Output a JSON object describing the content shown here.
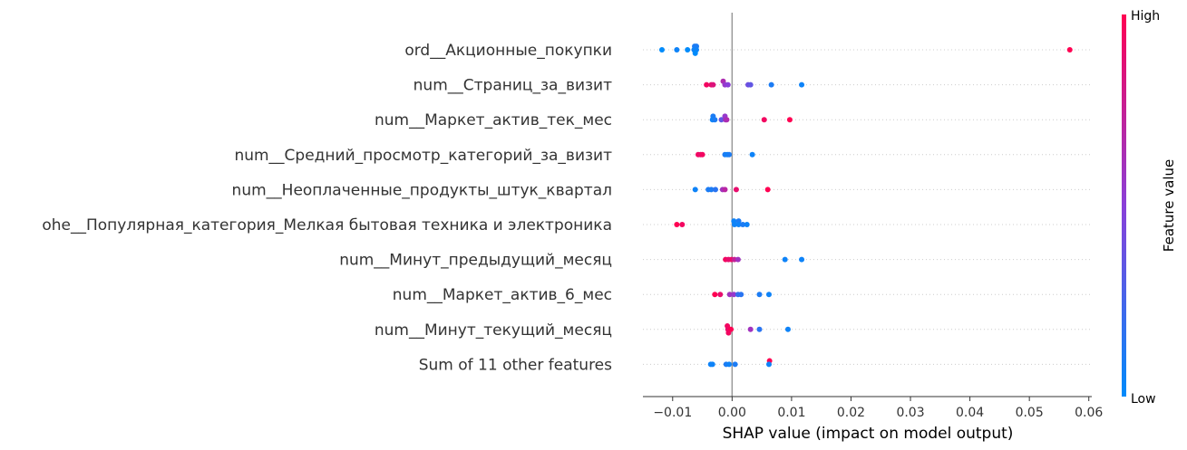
{
  "chart_data": {
    "type": "scatter",
    "subtype": "shap-beeswarm",
    "xlabel": "SHAP value (impact on model output)",
    "xlim": [
      -0.015,
      0.0605
    ],
    "xticks": [
      -0.01,
      0.0,
      0.01,
      0.02,
      0.03,
      0.04,
      0.05,
      0.06
    ],
    "xtick_labels": [
      "−0.01",
      "0.00",
      "0.01",
      "0.02",
      "0.03",
      "0.04",
      "0.05",
      "0.06"
    ],
    "zero_line": true,
    "row_gridlines": "dotted",
    "colorbar": {
      "title": "Feature value",
      "high_label": "High",
      "low_label": "Low",
      "low_color": "#008bfb",
      "high_color": "#ff0052",
      "placement": "right"
    },
    "features": [
      {
        "name": "ord__Акционные_покупки",
        "points": [
          {
            "x": -0.0118,
            "v": 0.0,
            "dy": 0.0
          },
          {
            "x": -0.0093,
            "v": 0.05,
            "dy": 0.0
          },
          {
            "x": -0.0075,
            "v": 0.0,
            "dy": 0.0
          },
          {
            "x": -0.0063,
            "v": 0.1,
            "dy": -0.32
          },
          {
            "x": -0.006,
            "v": 0.1,
            "dy": -0.32
          },
          {
            "x": -0.0064,
            "v": 0.05,
            "dy": 0.0
          },
          {
            "x": -0.006,
            "v": 0.05,
            "dy": 0.0
          },
          {
            "x": -0.0062,
            "v": 0.0,
            "dy": 0.32
          },
          {
            "x": 0.0568,
            "v": 1.0,
            "dy": 0.0
          }
        ]
      },
      {
        "name": "num__Страниц_за_визит",
        "points": [
          {
            "x": -0.0043,
            "v": 0.95,
            "dy": 0.0
          },
          {
            "x": -0.0035,
            "v": 0.9,
            "dy": 0.0
          },
          {
            "x": -0.0032,
            "v": 0.85,
            "dy": 0.0
          },
          {
            "x": -0.0015,
            "v": 0.65,
            "dy": -0.32
          },
          {
            "x": -0.0012,
            "v": 0.55,
            "dy": 0.0
          },
          {
            "x": -0.0007,
            "v": 0.5,
            "dy": 0.0
          },
          {
            "x": 0.0027,
            "v": 0.4,
            "dy": 0.0
          },
          {
            "x": 0.0031,
            "v": 0.35,
            "dy": 0.0
          },
          {
            "x": 0.0066,
            "v": 0.1,
            "dy": 0.0
          },
          {
            "x": 0.0117,
            "v": 0.05,
            "dy": 0.0
          }
        ]
      },
      {
        "name": "num__Маркет_актив_тек_мес",
        "points": [
          {
            "x": -0.0032,
            "v": 0.1,
            "dy": -0.32
          },
          {
            "x": -0.0033,
            "v": 0.05,
            "dy": 0.0
          },
          {
            "x": -0.0029,
            "v": 0.1,
            "dy": 0.0
          },
          {
            "x": -0.0018,
            "v": 0.35,
            "dy": 0.0
          },
          {
            "x": -0.0012,
            "v": 0.55,
            "dy": -0.32
          },
          {
            "x": -0.0011,
            "v": 0.6,
            "dy": 0.0
          },
          {
            "x": -0.0009,
            "v": 0.65,
            "dy": 0.0
          },
          {
            "x": 0.0054,
            "v": 0.95,
            "dy": 0.0
          },
          {
            "x": 0.0097,
            "v": 1.0,
            "dy": 0.0
          }
        ]
      },
      {
        "name": "num__Средний_просмотр_категорий_за_визит",
        "points": [
          {
            "x": -0.0057,
            "v": 0.95,
            "dy": 0.0
          },
          {
            "x": -0.0053,
            "v": 0.9,
            "dy": 0.0
          },
          {
            "x": -0.005,
            "v": 0.95,
            "dy": 0.0
          },
          {
            "x": -0.0012,
            "v": 0.1,
            "dy": 0.0
          },
          {
            "x": -0.0008,
            "v": 0.05,
            "dy": 0.0
          },
          {
            "x": -0.0005,
            "v": 0.1,
            "dy": 0.0
          },
          {
            "x": 0.0034,
            "v": 0.05,
            "dy": 0.0
          }
        ]
      },
      {
        "name": "num__Неоплаченные_продукты_штук_квартал",
        "points": [
          {
            "x": -0.0062,
            "v": 0.05,
            "dy": 0.0
          },
          {
            "x": -0.004,
            "v": 0.1,
            "dy": 0.0
          },
          {
            "x": -0.0035,
            "v": 0.1,
            "dy": 0.0
          },
          {
            "x": -0.0028,
            "v": 0.15,
            "dy": 0.0
          },
          {
            "x": -0.0016,
            "v": 0.6,
            "dy": 0.0
          },
          {
            "x": -0.0012,
            "v": 0.7,
            "dy": 0.0
          },
          {
            "x": 0.0007,
            "v": 0.9,
            "dy": 0.0
          },
          {
            "x": 0.006,
            "v": 1.0,
            "dy": 0.0
          }
        ]
      },
      {
        "name": "ohe__Популярная_категория_Мелкая бытовая техника и электроника",
        "points": [
          {
            "x": -0.0093,
            "v": 1.0,
            "dy": 0.0
          },
          {
            "x": -0.0084,
            "v": 0.95,
            "dy": 0.0
          },
          {
            "x": 0.0003,
            "v": 0.05,
            "dy": -0.32
          },
          {
            "x": 0.0011,
            "v": 0.1,
            "dy": -0.32
          },
          {
            "x": 0.0004,
            "v": 0.05,
            "dy": 0.0
          },
          {
            "x": 0.0011,
            "v": 0.05,
            "dy": 0.0
          },
          {
            "x": 0.0018,
            "v": 0.1,
            "dy": 0.0
          },
          {
            "x": 0.0025,
            "v": 0.05,
            "dy": 0.0
          }
        ]
      },
      {
        "name": "num__Минут_предыдущий_месяц",
        "points": [
          {
            "x": -0.0011,
            "v": 0.95,
            "dy": 0.0
          },
          {
            "x": -0.0006,
            "v": 0.9,
            "dy": 0.0
          },
          {
            "x": -0.0001,
            "v": 0.9,
            "dy": 0.0
          },
          {
            "x": 0.0004,
            "v": 0.75,
            "dy": 0.0
          },
          {
            "x": 0.001,
            "v": 0.6,
            "dy": 0.0
          },
          {
            "x": 0.0089,
            "v": 0.05,
            "dy": 0.0
          },
          {
            "x": 0.0117,
            "v": 0.05,
            "dy": 0.0
          }
        ]
      },
      {
        "name": "num__Маркет_актив_6_мес",
        "points": [
          {
            "x": -0.0029,
            "v": 1.0,
            "dy": 0.0
          },
          {
            "x": -0.002,
            "v": 0.9,
            "dy": 0.0
          },
          {
            "x": -0.0004,
            "v": 0.6,
            "dy": 0.0
          },
          {
            "x": 0.0003,
            "v": 0.55,
            "dy": 0.0
          },
          {
            "x": 0.001,
            "v": 0.2,
            "dy": 0.0
          },
          {
            "x": 0.0015,
            "v": 0.15,
            "dy": 0.0
          },
          {
            "x": 0.0046,
            "v": 0.1,
            "dy": 0.0
          },
          {
            "x": 0.0062,
            "v": 0.05,
            "dy": 0.0
          }
        ]
      },
      {
        "name": "num__Минут_текущий_месяц",
        "points": [
          {
            "x": -0.0008,
            "v": 0.95,
            "dy": -0.32
          },
          {
            "x": -0.0007,
            "v": 0.9,
            "dy": 0.0
          },
          {
            "x": -0.0004,
            "v": 0.95,
            "dy": 0.0
          },
          {
            "x": -0.0002,
            "v": 1.0,
            "dy": 0.0
          },
          {
            "x": -0.0006,
            "v": 0.95,
            "dy": 0.32
          },
          {
            "x": 0.0031,
            "v": 0.6,
            "dy": 0.0
          },
          {
            "x": 0.0046,
            "v": 0.15,
            "dy": 0.0
          },
          {
            "x": 0.0094,
            "v": 0.05,
            "dy": 0.0
          }
        ]
      },
      {
        "name": "Sum of 11 other features",
        "points": [
          {
            "x": 0.0063,
            "v": 1.0,
            "dy": -0.32
          },
          {
            "x": -0.0036,
            "v": 0.05,
            "dy": 0.0
          },
          {
            "x": -0.0033,
            "v": 0.05,
            "dy": 0.0
          },
          {
            "x": -0.001,
            "v": 0.1,
            "dy": 0.0
          },
          {
            "x": -0.0005,
            "v": 0.05,
            "dy": 0.0
          },
          {
            "x": 0.0005,
            "v": 0.1,
            "dy": 0.0
          },
          {
            "x": 0.0062,
            "v": 0.05,
            "dy": 0.0
          }
        ]
      }
    ]
  }
}
